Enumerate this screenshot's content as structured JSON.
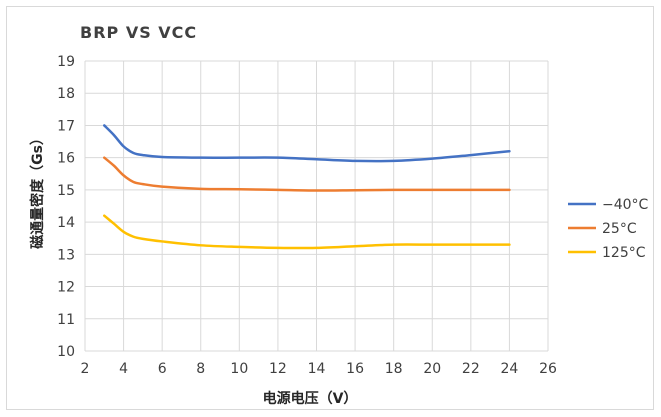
{
  "chart_data": {
    "type": "line",
    "title": "BRP VS VCC",
    "xlabel": "电源电压（V）",
    "ylabel": "磁通量密度（Gs）",
    "xlim": [
      2,
      26
    ],
    "ylim": [
      10,
      19
    ],
    "xticks": [
      2,
      4,
      6,
      8,
      10,
      12,
      14,
      16,
      18,
      20,
      22,
      24,
      26
    ],
    "yticks": [
      10,
      11,
      12,
      13,
      14,
      15,
      16,
      17,
      18,
      19
    ],
    "grid": true,
    "legend_position": "right",
    "series": [
      {
        "name": "−40°C",
        "color": "#4472c4",
        "x": [
          3,
          3.5,
          4,
          4.5,
          5,
          6,
          8,
          10,
          12,
          14,
          16,
          18,
          20,
          22,
          24
        ],
        "y": [
          17.0,
          16.7,
          16.35,
          16.15,
          16.08,
          16.02,
          16.0,
          16.0,
          16.0,
          15.95,
          15.9,
          15.9,
          15.97,
          16.08,
          16.2
        ]
      },
      {
        "name": "25°C",
        "color": "#ed7d31",
        "x": [
          3,
          3.5,
          4,
          4.5,
          5,
          6,
          8,
          10,
          12,
          14,
          16,
          18,
          20,
          22,
          24
        ],
        "y": [
          16.0,
          15.75,
          15.45,
          15.25,
          15.18,
          15.1,
          15.03,
          15.02,
          15.0,
          14.98,
          14.99,
          15.0,
          15.0,
          15.0,
          15.0
        ]
      },
      {
        "name": "125°C",
        "color": "#ffc000",
        "x": [
          3,
          3.5,
          4,
          4.5,
          5,
          6,
          8,
          10,
          12,
          14,
          16,
          18,
          20,
          22,
          24
        ],
        "y": [
          14.2,
          13.95,
          13.7,
          13.55,
          13.48,
          13.4,
          13.28,
          13.23,
          13.2,
          13.2,
          13.25,
          13.3,
          13.3,
          13.3,
          13.3
        ]
      }
    ]
  }
}
